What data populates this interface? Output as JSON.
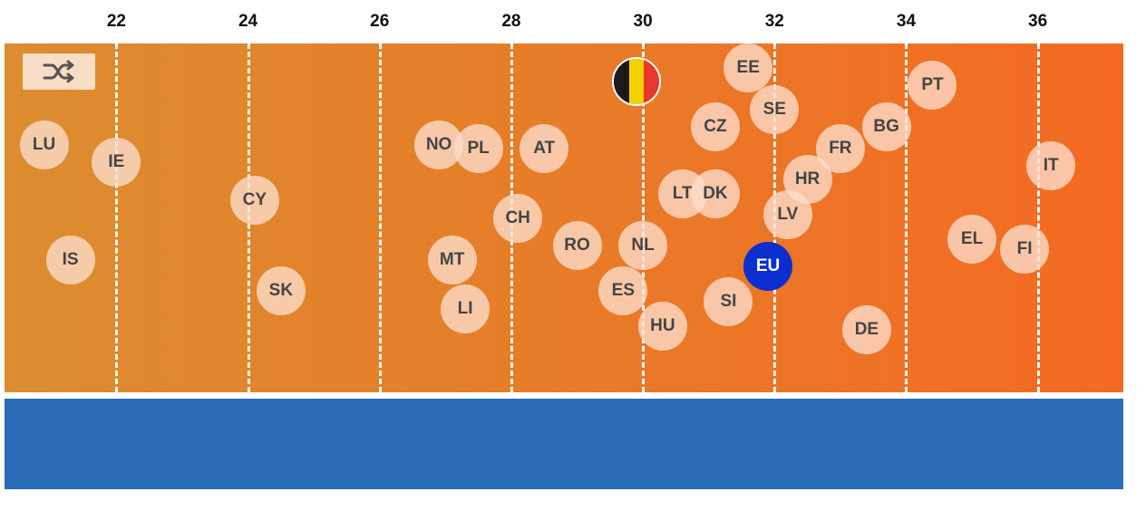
{
  "colors": {
    "gradient_start": "#db8d2f",
    "gradient_end": "#f46a22",
    "bubble": "#fddecc",
    "eu_bubble": "#0a2fce",
    "gridline": "#ffffff",
    "lower_panel": "#2a6db6"
  },
  "controls": {
    "shuffle_icon": "shuffle-icon"
  },
  "chart_data": {
    "type": "scatter",
    "xlim": [
      20.3,
      37.3
    ],
    "x_ticks": [
      22,
      24,
      26,
      28,
      30,
      32,
      34,
      36
    ],
    "grid": true,
    "highlight": {
      "name": "Belgium",
      "flag_colors": [
        "#1a1a1a",
        "#f5d000",
        "#e8372b"
      ]
    },
    "points": [
      {
        "label": "LU",
        "x": 20.9,
        "y": 0.71
      },
      {
        "label": "IE",
        "x": 22.0,
        "y": 0.66
      },
      {
        "label": "IS",
        "x": 21.3,
        "y": 0.38
      },
      {
        "label": "CY",
        "x": 24.1,
        "y": 0.55
      },
      {
        "label": "SK",
        "x": 24.5,
        "y": 0.29
      },
      {
        "label": "NO",
        "x": 26.9,
        "y": 0.71
      },
      {
        "label": "PL",
        "x": 27.5,
        "y": 0.7
      },
      {
        "label": "AT",
        "x": 28.5,
        "y": 0.7
      },
      {
        "label": "CH",
        "x": 28.1,
        "y": 0.5
      },
      {
        "label": "MT",
        "x": 27.1,
        "y": 0.38
      },
      {
        "label": "LI",
        "x": 27.3,
        "y": 0.24
      },
      {
        "label": "RO",
        "x": 29.0,
        "y": 0.42
      },
      {
        "label": "ES",
        "x": 29.7,
        "y": 0.29
      },
      {
        "label": "NL",
        "x": 30.0,
        "y": 0.42
      },
      {
        "label": "HU",
        "x": 30.3,
        "y": 0.19
      },
      {
        "label": "LT",
        "x": 30.6,
        "y": 0.57
      },
      {
        "label": "DK",
        "x": 31.1,
        "y": 0.57
      },
      {
        "label": "CZ",
        "x": 31.1,
        "y": 0.76
      },
      {
        "label": "EE",
        "x": 31.6,
        "y": 0.93
      },
      {
        "label": "SE",
        "x": 32.0,
        "y": 0.81
      },
      {
        "label": "SI",
        "x": 31.3,
        "y": 0.26
      },
      {
        "label": "LV",
        "x": 32.2,
        "y": 0.51
      },
      {
        "label": "HR",
        "x": 32.5,
        "y": 0.61
      },
      {
        "label": "FR",
        "x": 33.0,
        "y": 0.7
      },
      {
        "label": "BG",
        "x": 33.7,
        "y": 0.76
      },
      {
        "label": "PT",
        "x": 34.4,
        "y": 0.88
      },
      {
        "label": "EL",
        "x": 35.0,
        "y": 0.44
      },
      {
        "label": "FI",
        "x": 35.8,
        "y": 0.41
      },
      {
        "label": "IT",
        "x": 36.2,
        "y": 0.65
      },
      {
        "label": "DE",
        "x": 33.4,
        "y": 0.18
      },
      {
        "label": "EU",
        "x": 31.9,
        "y": 0.36,
        "highlight": "eu"
      }
    ],
    "belgium_point": {
      "x": 29.9,
      "y": 0.89
    }
  }
}
